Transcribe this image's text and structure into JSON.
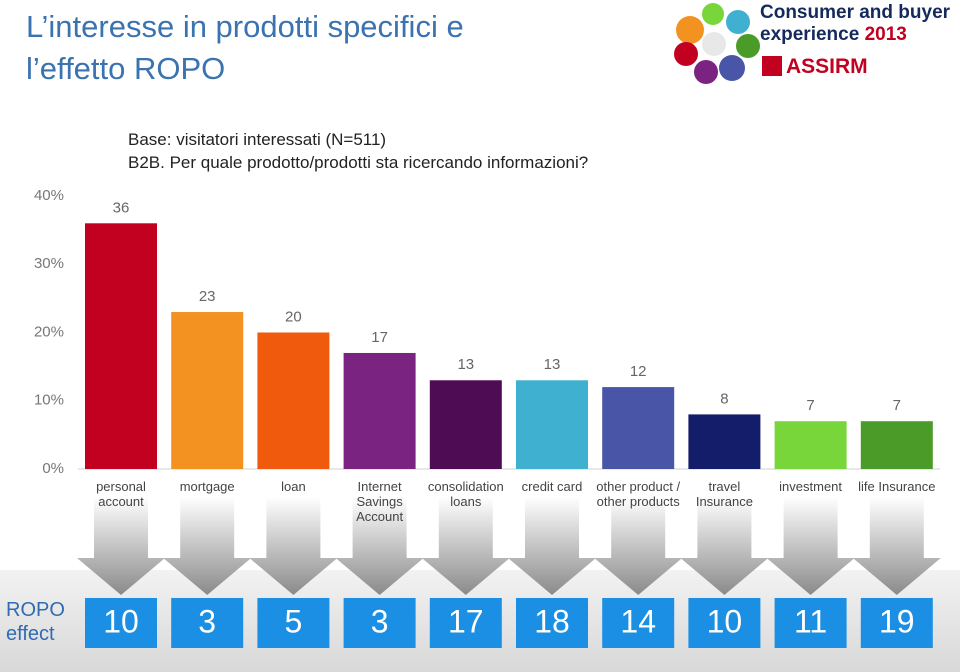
{
  "header": {
    "title": "L’interesse in prodotti specifici e l’effetto ROPO",
    "logo_line1": "Consumer and buyer",
    "logo_line2": "experience",
    "logo_year": "2013",
    "logo_org": "ASSIRM"
  },
  "base": [
    "Base:  visitatori interessati (N=511)",
    "B2B. Per quale prodotto/prodotti sta ricercando informazioni?"
  ],
  "chart_data": {
    "type": "bar",
    "categories": [
      "personal account",
      "mortgage",
      "loan",
      "Internet Savings Account",
      "consolidation loans",
      "credit card",
      "other product / other products",
      "travel Insurance",
      "investment",
      "life Insurance"
    ],
    "values": [
      36,
      23,
      20,
      17,
      13,
      13,
      12,
      8,
      7,
      7
    ],
    "colors": [
      "#c2001f",
      "#f39221",
      "#f05a0c",
      "#7a2380",
      "#4e0c55",
      "#40b0d0",
      "#4955a7",
      "#141d69",
      "#78d63a",
      "#4a9b27"
    ],
    "ylim": [
      0,
      40
    ],
    "yticks": [
      {
        "value": 0,
        "label": "0%"
      },
      {
        "value": 10,
        "label": "10%"
      },
      {
        "value": 20,
        "label": "20%"
      },
      {
        "value": 30,
        "label": "30%"
      },
      {
        "value": 40,
        "label": "40%"
      }
    ]
  },
  "ropo": {
    "label": "ROPO effect",
    "values": [
      10,
      3,
      5,
      3,
      17,
      18,
      14,
      10,
      11,
      19
    ]
  }
}
